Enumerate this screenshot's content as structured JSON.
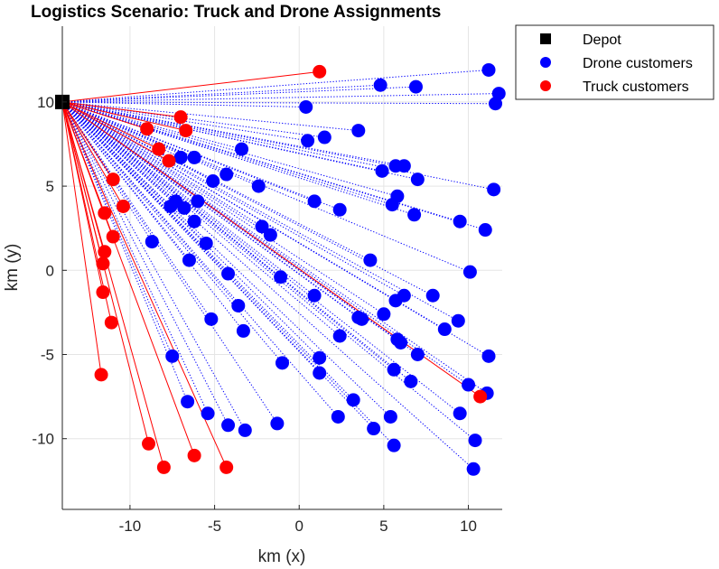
{
  "chart_data": {
    "type": "scatter",
    "title": "Logistics Scenario: Truck and Drone Assignments",
    "xlabel": "km (x)",
    "ylabel": "km (y)",
    "xlim": [
      -14,
      12
    ],
    "ylim": [
      -14.2,
      14.5
    ],
    "xticks": [
      -10,
      -5,
      0,
      5,
      10
    ],
    "yticks": [
      -10,
      -5,
      0,
      5,
      10
    ],
    "grid": true,
    "legend": {
      "placement": "top-right",
      "entries": [
        {
          "label": "Depot",
          "marker": "square",
          "color": "#000000"
        },
        {
          "label": "Drone customers",
          "marker": "circle",
          "color": "#0000ff"
        },
        {
          "label": "Truck customers",
          "marker": "circle",
          "color": "#ff0000"
        }
      ]
    },
    "depot": {
      "x": -14,
      "y": 10
    },
    "colors": {
      "depot": "#000000",
      "drone": "#0000ff",
      "truck": "#ff0000",
      "grid": "#e5e5e5",
      "axis": "#262626"
    },
    "series": [
      {
        "name": "Drone customers",
        "line_style": "dotted",
        "points": [
          [
            11.2,
            11.9
          ],
          [
            4.8,
            11.0
          ],
          [
            6.9,
            10.9
          ],
          [
            11.8,
            10.5
          ],
          [
            11.6,
            9.9
          ],
          [
            0.4,
            9.7
          ],
          [
            3.5,
            8.3
          ],
          [
            1.5,
            7.9
          ],
          [
            0.5,
            7.7
          ],
          [
            -3.4,
            7.2
          ],
          [
            -7.0,
            6.7
          ],
          [
            -6.2,
            6.7
          ],
          [
            6.2,
            6.2
          ],
          [
            5.7,
            6.2
          ],
          [
            4.9,
            5.9
          ],
          [
            -4.3,
            5.7
          ],
          [
            7.0,
            5.4
          ],
          [
            -5.1,
            5.3
          ],
          [
            -2.4,
            5.0
          ],
          [
            11.5,
            4.8
          ],
          [
            5.8,
            4.4
          ],
          [
            -7.3,
            4.1
          ],
          [
            -6.0,
            4.1
          ],
          [
            0.9,
            4.1
          ],
          [
            5.5,
            3.9
          ],
          [
            -7.6,
            3.8
          ],
          [
            -6.8,
            3.7
          ],
          [
            2.4,
            3.6
          ],
          [
            6.8,
            3.3
          ],
          [
            -6.2,
            2.9
          ],
          [
            9.5,
            2.9
          ],
          [
            -2.2,
            2.6
          ],
          [
            11.0,
            2.4
          ],
          [
            -1.7,
            2.1
          ],
          [
            -8.7,
            1.7
          ],
          [
            -5.5,
            1.6
          ],
          [
            4.2,
            0.6
          ],
          [
            -6.5,
            0.6
          ],
          [
            10.1,
            -0.1
          ],
          [
            -4.2,
            -0.2
          ],
          [
            -1.1,
            -0.4
          ],
          [
            0.9,
            -1.5
          ],
          [
            6.2,
            -1.5
          ],
          [
            7.9,
            -1.5
          ],
          [
            5.7,
            -1.8
          ],
          [
            -3.6,
            -2.1
          ],
          [
            5.0,
            -2.6
          ],
          [
            3.5,
            -2.8
          ],
          [
            3.7,
            -2.9
          ],
          [
            9.4,
            -3.0
          ],
          [
            -5.2,
            -2.9
          ],
          [
            8.6,
            -3.5
          ],
          [
            -3.3,
            -3.6
          ],
          [
            2.4,
            -3.9
          ],
          [
            5.8,
            -4.1
          ],
          [
            6.0,
            -4.3
          ],
          [
            7.0,
            -5.0
          ],
          [
            -7.5,
            -5.1
          ],
          [
            11.2,
            -5.1
          ],
          [
            1.2,
            -5.2
          ],
          [
            -1.0,
            -5.5
          ],
          [
            5.6,
            -5.9
          ],
          [
            1.2,
            -6.1
          ],
          [
            6.6,
            -6.6
          ],
          [
            10.0,
            -6.8
          ],
          [
            11.1,
            -7.3
          ],
          [
            3.2,
            -7.7
          ],
          [
            -6.6,
            -7.8
          ],
          [
            -5.4,
            -8.5
          ],
          [
            9.5,
            -8.5
          ],
          [
            2.3,
            -8.7
          ],
          [
            5.4,
            -8.7
          ],
          [
            -4.2,
            -9.2
          ],
          [
            -1.3,
            -9.1
          ],
          [
            -3.2,
            -9.5
          ],
          [
            4.4,
            -9.4
          ],
          [
            10.4,
            -10.1
          ],
          [
            5.6,
            -10.4
          ],
          [
            10.3,
            -11.8
          ]
        ]
      },
      {
        "name": "Truck customers",
        "line_style": "solid",
        "points": [
          [
            1.2,
            11.8
          ],
          [
            -7.0,
            9.1
          ],
          [
            -9.0,
            8.4
          ],
          [
            -6.7,
            8.3
          ],
          [
            -8.3,
            7.2
          ],
          [
            -7.7,
            6.5
          ],
          [
            -11.0,
            5.4
          ],
          [
            -10.4,
            3.8
          ],
          [
            -11.5,
            3.4
          ],
          [
            -11.0,
            2.0
          ],
          [
            -11.5,
            1.1
          ],
          [
            -11.6,
            0.4
          ],
          [
            -11.6,
            -1.3
          ],
          [
            -11.1,
            -3.1
          ],
          [
            -11.7,
            -6.2
          ],
          [
            10.7,
            -7.5
          ],
          [
            -8.9,
            -10.3
          ],
          [
            -8.0,
            -11.7
          ],
          [
            -6.2,
            -11.0
          ],
          [
            -4.3,
            -11.7
          ]
        ]
      }
    ]
  }
}
